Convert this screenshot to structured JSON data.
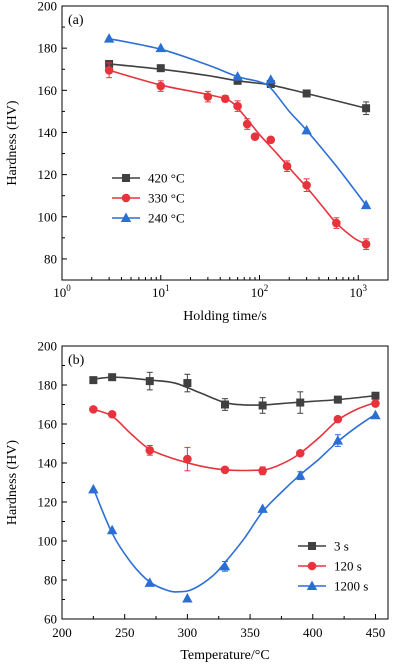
{
  "chart_data": [
    {
      "type": "line",
      "panel_label": "(a)",
      "xlabel": "Holding time/s",
      "ylabel": "Hardness (HV)",
      "xscale": "log",
      "xlim": [
        1,
        2000
      ],
      "ylim": [
        70,
        200
      ],
      "x_ticks": [
        {
          "value": 1,
          "base": "10",
          "exp": "0"
        },
        {
          "value": 10,
          "base": "10",
          "exp": "1"
        },
        {
          "value": 100,
          "base": "10",
          "exp": "2"
        },
        {
          "value": 1000,
          "base": "10",
          "exp": "3"
        }
      ],
      "y_ticks": [
        80,
        100,
        120,
        140,
        160,
        180,
        200
      ],
      "legend_position": "lower-left",
      "series": [
        {
          "name": "420 °C",
          "color": "#404040",
          "marker": "square",
          "points": [
            [
              3,
              172.5,
              1.5
            ],
            [
              10,
              170.5,
              1
            ],
            [
              60,
              164.5,
              1.5
            ],
            [
              130,
              163,
              1
            ],
            [
              300,
              158.5,
              1
            ],
            [
              1200,
              151.5,
              3
            ]
          ],
          "curve": [
            [
              3,
              172.5
            ],
            [
              10,
              170
            ],
            [
              30,
              167
            ],
            [
              60,
              164.5
            ],
            [
              130,
              162.5
            ],
            [
              300,
              158.5
            ],
            [
              1200,
              151.5
            ]
          ]
        },
        {
          "name": "330 °C",
          "color": "#e8323c",
          "marker": "circle",
          "points": [
            [
              3,
              169.5,
              3.5
            ],
            [
              10,
              162,
              2.5
            ],
            [
              30,
              157,
              2.5
            ],
            [
              45,
              156,
              1.5
            ],
            [
              60,
              152.5,
              2.5
            ],
            [
              75,
              144,
              2.5
            ],
            [
              90,
              138,
              1
            ],
            [
              130,
              136.5,
              1
            ],
            [
              190,
              124,
              2.5
            ],
            [
              300,
              115,
              3
            ],
            [
              600,
              97,
              2.5
            ],
            [
              1200,
              87,
              2.5
            ]
          ],
          "curve": [
            [
              3,
              169.5
            ],
            [
              10,
              162.5
            ],
            [
              30,
              158
            ],
            [
              50,
              155
            ],
            [
              70,
              148
            ],
            [
              100,
              139
            ],
            [
              150,
              130
            ],
            [
              220,
              121
            ],
            [
              300,
              114
            ],
            [
              450,
              104
            ],
            [
              600,
              97
            ],
            [
              900,
              90
            ],
            [
              1200,
              87
            ]
          ]
        },
        {
          "name": "240 °C",
          "color": "#2b6fd6",
          "marker": "triangle",
          "points": [
            [
              3,
              184.5,
              0
            ],
            [
              10,
              180,
              0
            ],
            [
              60,
              166.5,
              0
            ],
            [
              130,
              165,
              0
            ],
            [
              300,
              141,
              0
            ],
            [
              1200,
              105.5,
              0
            ]
          ],
          "curve": [
            [
              3,
              184.5
            ],
            [
              10,
              179.5
            ],
            [
              30,
              172
            ],
            [
              60,
              166.5
            ],
            [
              100,
              164
            ],
            [
              130,
              161
            ],
            [
              200,
              150
            ],
            [
              300,
              141
            ],
            [
              600,
              124
            ],
            [
              1200,
              105.5
            ]
          ]
        }
      ]
    },
    {
      "type": "line",
      "panel_label": "(b)",
      "xlabel": "Temperature/°C",
      "ylabel": "Hardness (HV)",
      "xlim": [
        200,
        460
      ],
      "ylim": [
        60,
        200
      ],
      "x_ticks": [
        200,
        250,
        300,
        350,
        400,
        450
      ],
      "y_ticks": [
        60,
        80,
        100,
        120,
        140,
        160,
        180,
        200
      ],
      "legend_position": "lower-right",
      "series": [
        {
          "name": "3 s",
          "color": "#404040",
          "marker": "square",
          "points": [
            [
              225,
              182.5,
              1.5
            ],
            [
              240,
              184,
              1
            ],
            [
              270,
              182,
              4.5
            ],
            [
              300,
              181,
              4.5
            ],
            [
              330,
              170,
              3
            ],
            [
              360,
              169.5,
              4
            ],
            [
              390,
              171,
              5.5
            ],
            [
              420,
              172.5,
              1
            ],
            [
              450,
              174.5,
              1
            ]
          ],
          "curve": [
            [
              225,
              183
            ],
            [
              240,
              184
            ],
            [
              255,
              183.5
            ],
            [
              270,
              182.5
            ],
            [
              290,
              181
            ],
            [
              310,
              176
            ],
            [
              330,
              171
            ],
            [
              345,
              169.8
            ],
            [
              360,
              169.8
            ],
            [
              375,
              170.5
            ],
            [
              390,
              171.2
            ],
            [
              420,
              172.5
            ],
            [
              450,
              174.5
            ]
          ]
        },
        {
          "name": "120 s",
          "color": "#e8323c",
          "marker": "circle",
          "points": [
            [
              225,
              167.5,
              0
            ],
            [
              240,
              165,
              1
            ],
            [
              270,
              146.5,
              2.5
            ],
            [
              300,
              142,
              6
            ],
            [
              330,
              136.5,
              1
            ],
            [
              360,
              136,
              2
            ],
            [
              390,
              145,
              1
            ],
            [
              420,
              162.5,
              1
            ],
            [
              450,
              170.5,
              1.5
            ]
          ],
          "curve": [
            [
              225,
              167.5
            ],
            [
              240,
              164
            ],
            [
              255,
              155
            ],
            [
              270,
              147
            ],
            [
              290,
              142
            ],
            [
              310,
              138.5
            ],
            [
              330,
              136.5
            ],
            [
              350,
              136.2
            ],
            [
              365,
              137
            ],
            [
              380,
              141
            ],
            [
              390,
              145
            ],
            [
              405,
              153
            ],
            [
              420,
              162
            ],
            [
              435,
              167.5
            ],
            [
              450,
              171
            ]
          ]
        },
        {
          "name": "1200 s",
          "color": "#2b6fd6",
          "marker": "triangle",
          "points": [
            [
              225,
              126.5,
              0
            ],
            [
              240,
              105.5,
              0
            ],
            [
              270,
              78.5,
              0
            ],
            [
              300,
              70.5,
              0
            ],
            [
              330,
              87,
              2.5
            ],
            [
              360,
              116.5,
              0
            ],
            [
              390,
              133.5,
              2
            ],
            [
              420,
              151.5,
              3
            ],
            [
              450,
              164.5,
              0
            ]
          ],
          "curve": [
            [
              225,
              127
            ],
            [
              240,
              104
            ],
            [
              255,
              89
            ],
            [
              270,
              79
            ],
            [
              285,
              74.5
            ],
            [
              295,
              74
            ],
            [
              305,
              75.5
            ],
            [
              320,
              82
            ],
            [
              330,
              89
            ],
            [
              345,
              101
            ],
            [
              360,
              115
            ],
            [
              375,
              125
            ],
            [
              390,
              134
            ],
            [
              405,
              142
            ],
            [
              420,
              151
            ],
            [
              435,
              158.5
            ],
            [
              450,
              165
            ]
          ]
        }
      ]
    }
  ]
}
